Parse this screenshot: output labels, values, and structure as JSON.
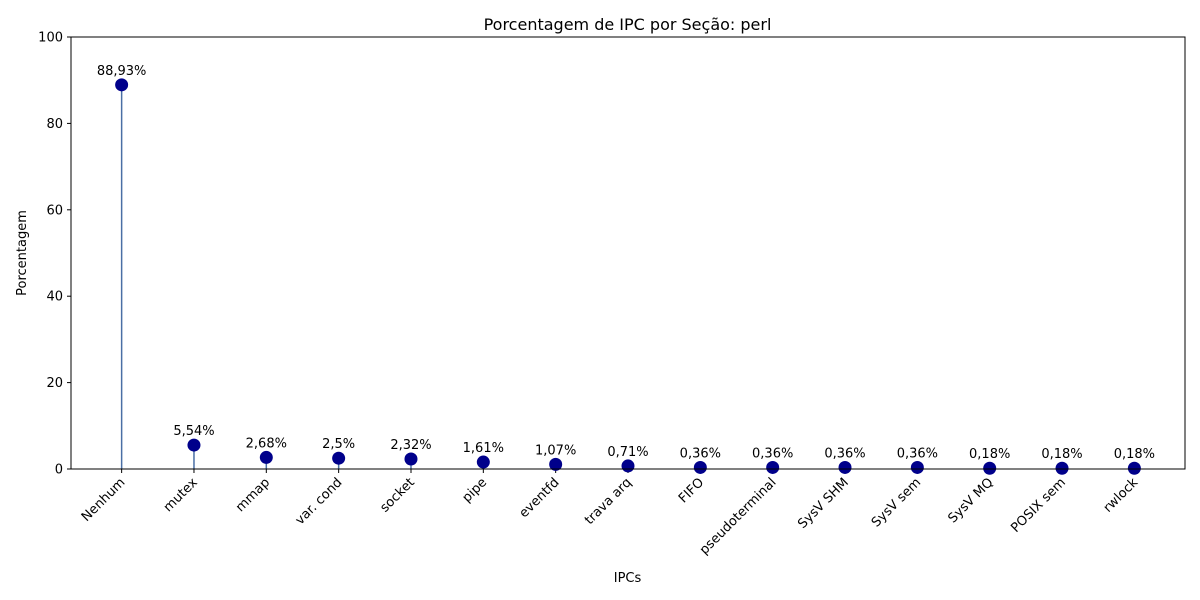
{
  "chart_data": {
    "type": "lollipop",
    "title": "Porcentagem de IPC por Seção: perl",
    "xlabel": "IPCs",
    "ylabel": "Porcentagem",
    "ylim": [
      0,
      100
    ],
    "yticks": [
      "0",
      "20",
      "40",
      "60",
      "80",
      "100"
    ],
    "grid": false,
    "categories": [
      "Nenhum",
      "mutex",
      "mmap",
      "var. cond",
      "socket",
      "pipe",
      "eventfd",
      "trava arq",
      "FIFO",
      "pseudoterminal",
      "SysV SHM",
      "SysV sem",
      "SysV MQ",
      "POSIX sem",
      "rwlock"
    ],
    "values": [
      88.93,
      5.54,
      2.68,
      2.5,
      2.32,
      1.61,
      1.07,
      0.71,
      0.36,
      0.36,
      0.36,
      0.36,
      0.18,
      0.18,
      0.18
    ],
    "value_labels": [
      "88,93%",
      "5,54%",
      "2,68%",
      "2,5%",
      "2,32%",
      "1,61%",
      "1,07%",
      "0,71%",
      "0,36%",
      "0,36%",
      "0,36%",
      "0,36%",
      "0,18%",
      "0,18%",
      "0,18%"
    ],
    "colors": {
      "stem": "#4a6fa5",
      "marker": "#00008b",
      "axis": "#000000"
    }
  }
}
